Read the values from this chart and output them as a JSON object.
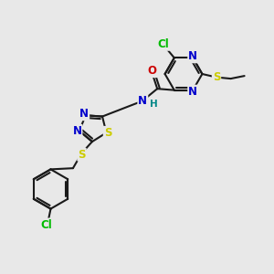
{
  "bg_color": "#e8e8e8",
  "bond_color": "#1a1a1a",
  "bond_width": 1.5,
  "atom_colors": {
    "C": "#1a1a1a",
    "N": "#0000cc",
    "O": "#cc0000",
    "S": "#cccc00",
    "Cl": "#00bb00",
    "H": "#008888"
  },
  "font_size": 8.5
}
